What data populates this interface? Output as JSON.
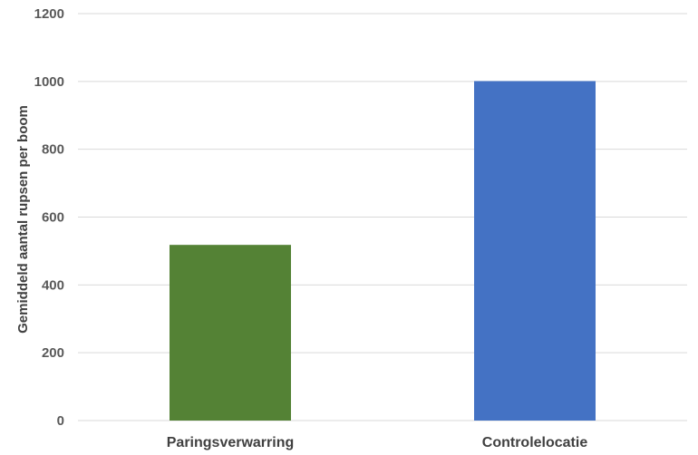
{
  "chart_data": {
    "type": "bar",
    "title": "",
    "xlabel": "",
    "ylabel": "Gemiddeld aantal rupsen per boom",
    "categories": [
      "Paringsverwarring",
      "Controlelocatie"
    ],
    "values": [
      518,
      1001
    ],
    "bar_colors": [
      "#548235",
      "#4472c4"
    ],
    "ylim": [
      0,
      1200
    ],
    "yticks": [
      0,
      200,
      400,
      600,
      800,
      1000,
      1200
    ],
    "grid": true,
    "legend": "none"
  }
}
